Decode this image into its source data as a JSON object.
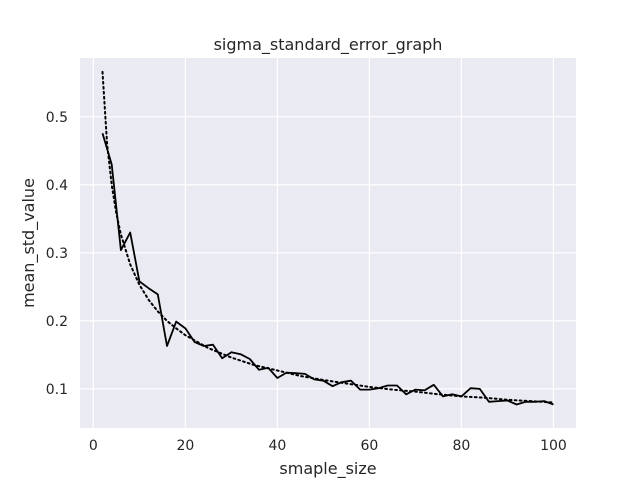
{
  "chart_data": {
    "type": "line",
    "title": "sigma_standard_error_graph",
    "xlabel": "smaple_size",
    "ylabel": "mean_std_value",
    "xlim": [
      -2.9,
      104.9
    ],
    "ylim": [
      0.0425,
      0.5865
    ],
    "xticks": [
      0,
      20,
      40,
      60,
      80,
      100
    ],
    "yticks": [
      0.1,
      0.2,
      0.3,
      0.4,
      0.5
    ],
    "xtick_labels": [
      "0",
      "20",
      "40",
      "60",
      "80",
      "100"
    ],
    "ytick_labels": [
      "0.1",
      "0.2",
      "0.3",
      "0.4",
      "0.5"
    ],
    "grid": true,
    "legend": "none",
    "colors": {
      "plot_background": "#eaeaf2",
      "grid": "#ffffff",
      "line": "#000000"
    },
    "series": [
      {
        "style": "solid",
        "x": [
          2,
          4,
          6,
          8,
          10,
          12,
          14,
          16,
          18,
          20,
          22,
          24,
          26,
          28,
          30,
          32,
          34,
          36,
          38,
          40,
          42,
          44,
          46,
          48,
          50,
          52,
          54,
          56,
          58,
          60,
          62,
          64,
          66,
          68,
          70,
          72,
          74,
          76,
          78,
          80,
          82,
          84,
          86,
          88,
          90,
          92,
          94,
          96,
          98,
          100
        ],
        "y": [
          0.476,
          0.43,
          0.304,
          0.33,
          0.258,
          0.248,
          0.239,
          0.163,
          0.199,
          0.189,
          0.169,
          0.163,
          0.165,
          0.145,
          0.154,
          0.151,
          0.144,
          0.128,
          0.131,
          0.116,
          0.124,
          0.123,
          0.122,
          0.114,
          0.112,
          0.104,
          0.11,
          0.112,
          0.099,
          0.099,
          0.101,
          0.105,
          0.105,
          0.092,
          0.099,
          0.098,
          0.106,
          0.089,
          0.092,
          0.089,
          0.101,
          0.1,
          0.081,
          0.082,
          0.083,
          0.077,
          0.081,
          0.081,
          0.082,
          0.077
        ]
      },
      {
        "style": "dotted",
        "x": [
          2,
          3,
          4,
          5,
          6,
          8,
          10,
          12,
          14,
          16,
          18,
          20,
          25,
          30,
          35,
          40,
          45,
          50,
          55,
          60,
          65,
          70,
          75,
          80,
          85,
          90,
          95,
          100
        ],
        "y": [
          0.566,
          0.46,
          0.4,
          0.358,
          0.327,
          0.283,
          0.253,
          0.231,
          0.214,
          0.2,
          0.189,
          0.179,
          0.16,
          0.146,
          0.135,
          0.127,
          0.119,
          0.113,
          0.108,
          0.103,
          0.099,
          0.096,
          0.092,
          0.089,
          0.087,
          0.084,
          0.082,
          0.08
        ]
      }
    ]
  }
}
